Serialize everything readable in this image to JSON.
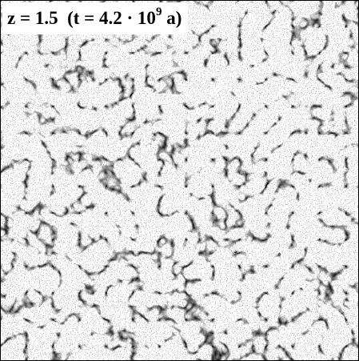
{
  "label": {
    "redshift": "z = 1.5",
    "time_prefix": "(t = 4.2 · 10",
    "time_exponent": "9",
    "time_suffix": "a)"
  }
}
